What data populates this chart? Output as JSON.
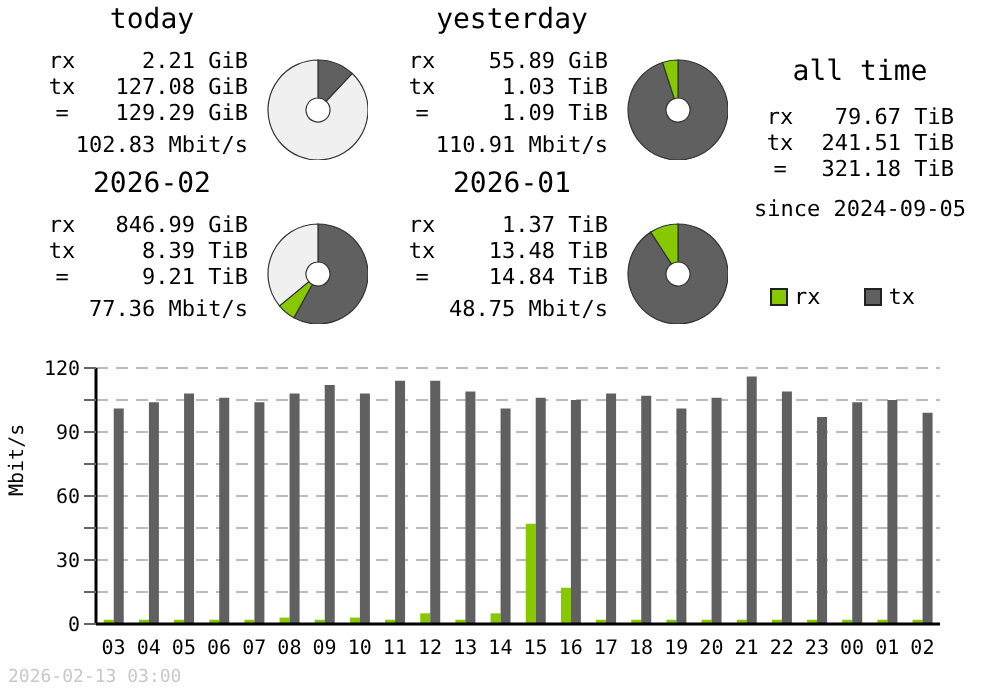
{
  "chart_data": [
    {
      "type": "donut",
      "title": "today",
      "categories": [
        null,
        null,
        null
      ],
      "values": [
        12,
        null,
        88
      ],
      "colors": [
        "#606060",
        "#88c800",
        "#f0f0f0"
      ],
      "annotations": [
        "rx",
        "2.21 GiB",
        "tx",
        "127.08 GiB",
        "=",
        "129.29 GiB",
        "102.83 Mbit/s"
      ]
    },
    {
      "type": "donut",
      "title": "yesterday",
      "categories": [
        null,
        null,
        null
      ],
      "values": [
        95,
        5,
        0
      ],
      "colors": [
        "#606060",
        "#88c800",
        "#f0f0f0"
      ],
      "annotations": [
        "rx",
        "55.89 GiB",
        "tx",
        "1.03 TiB",
        "=",
        "1.09 TiB",
        "110.91 Mbit/s"
      ]
    },
    {
      "type": "donut",
      "title": "2026-02",
      "categories": [
        null,
        null,
        null
      ],
      "values": [
        58,
        6,
        36
      ],
      "colors": [
        "#606060",
        "#88c800",
        "#f0f0f0"
      ],
      "annotations": [
        "rx",
        "846.99 GiB",
        "tx",
        "8.39 TiB",
        "=",
        "9.21 TiB",
        "77.36 Mbit/s"
      ]
    },
    {
      "type": "donut",
      "title": "2026-01",
      "categories": [
        null,
        null,
        null
      ],
      "values": [
        90.8,
        9.2,
        0
      ],
      "colors": [
        "#606060",
        "#88c800",
        "#f0f0f0"
      ],
      "annotations": [
        "rx",
        "1.37 TiB",
        "tx",
        "13.48 TiB",
        "=",
        "14.84 TiB",
        "48.75 Mbit/s"
      ]
    },
    {
      "type": "other",
      "title": "all time",
      "annotations": [
        "rx",
        "79.67 TiB",
        "tx",
        "241.51 TiB",
        "=",
        "321.18 TiB",
        "since 2024-09-05"
      ]
    },
    {
      "type": "bar",
      "ylabel": "Mbit/s",
      "categories": [
        "03",
        "04",
        "05",
        "06",
        "07",
        "08",
        "09",
        "10",
        "11",
        "12",
        "13",
        "14",
        "15",
        "16",
        "17",
        "18",
        "19",
        "20",
        "21",
        "22",
        "23",
        "00",
        "01",
        "02"
      ],
      "series": [
        {
          "name": "rx",
          "color": "#88c800",
          "values": [
            2,
            2,
            2,
            2,
            2,
            3,
            2,
            3,
            2,
            5,
            2,
            5,
            47,
            17,
            2,
            2,
            2,
            2,
            2,
            2,
            2,
            2,
            2,
            2
          ]
        },
        {
          "name": "tx",
          "color": "#606060",
          "values": [
            101,
            104,
            108,
            106,
            104,
            108,
            112,
            108,
            114,
            114,
            109,
            101,
            106,
            105,
            108,
            107,
            101,
            106,
            116,
            109,
            97,
            104,
            105,
            99
          ]
        }
      ],
      "ylim": [
        0,
        120
      ],
      "yticks": [
        0,
        {
          "value": 15,
          "label": null
        },
        30,
        {
          "value": 45,
          "label": null
        },
        60,
        {
          "value": 75,
          "label": null
        },
        90,
        {
          "value": 105,
          "label": null
        },
        120
      ],
      "grid": "y",
      "legend": "top right",
      "annotations": [
        "2026-02-13 03:00"
      ]
    }
  ]
}
